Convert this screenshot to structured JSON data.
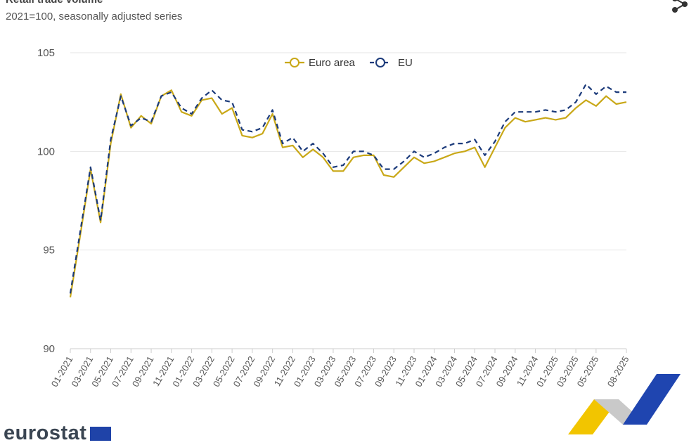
{
  "header": {
    "title": "Retail trade volume",
    "subtitle": "2021=100, seasonally adjusted series"
  },
  "footer": {
    "brand": "eurostat"
  },
  "icons": {
    "share": "share-icon",
    "flag": "eu-flag-icon"
  },
  "colors": {
    "euro_area": "#c9a818",
    "eu": "#1b3a7a",
    "grid": "#e6e6e6",
    "axis": "#cccccc"
  },
  "chart_data": {
    "type": "line",
    "title": "Retail trade volume",
    "subtitle": "2021=100, seasonally adjusted series",
    "xlabel": "",
    "ylabel": "",
    "ylim": [
      90,
      105
    ],
    "yticks": [
      90,
      95,
      100,
      105
    ],
    "grid": true,
    "legend_position": "top-center",
    "categories": [
      "01-2021",
      "02-2021",
      "03-2021",
      "04-2021",
      "05-2021",
      "06-2021",
      "07-2021",
      "08-2021",
      "09-2021",
      "10-2021",
      "11-2021",
      "12-2021",
      "01-2022",
      "02-2022",
      "03-2022",
      "04-2022",
      "05-2022",
      "06-2022",
      "07-2022",
      "08-2022",
      "09-2022",
      "10-2022",
      "11-2022",
      "12-2022",
      "01-2023",
      "02-2023",
      "03-2023",
      "04-2023",
      "05-2023",
      "06-2023",
      "07-2023",
      "08-2023",
      "09-2023",
      "10-2023",
      "11-2023",
      "12-2023",
      "01-2024",
      "02-2024",
      "03-2024",
      "04-2024",
      "05-2024",
      "06-2024",
      "07-2024",
      "08-2024",
      "09-2024",
      "10-2024",
      "11-2024",
      "12-2024",
      "01-2025",
      "02-2025",
      "03-2025",
      "04-2025",
      "05-2025",
      "06-2025",
      "07-2025",
      "08-2025"
    ],
    "tick_labels": [
      "01-2021",
      "03-2021",
      "05-2021",
      "07-2021",
      "09-2021",
      "11-2021",
      "01-2022",
      "03-2022",
      "05-2022",
      "07-2022",
      "09-2022",
      "11-2022",
      "01-2023",
      "03-2023",
      "05-2023",
      "07-2023",
      "09-2023",
      "11-2023",
      "01-2024",
      "03-2024",
      "05-2024",
      "07-2024",
      "09-2024",
      "11-2024",
      "01-2025",
      "03-2025",
      "05-2025",
      "08-2025"
    ],
    "series": [
      {
        "name": "Euro area",
        "style": "solid",
        "values": [
          92.6,
          95.8,
          99.1,
          96.4,
          100.4,
          102.9,
          101.2,
          101.8,
          101.4,
          102.8,
          103.1,
          102.0,
          101.8,
          102.6,
          102.7,
          101.9,
          102.2,
          100.8,
          100.7,
          100.9,
          101.9,
          100.2,
          100.3,
          99.7,
          100.1,
          99.7,
          99.0,
          99.0,
          99.7,
          99.8,
          99.8,
          98.8,
          98.7,
          99.2,
          99.7,
          99.4,
          99.5,
          99.7,
          99.9,
          100.0,
          100.2,
          99.2,
          100.2,
          101.2,
          101.7,
          101.5,
          101.6,
          101.7,
          101.6,
          101.7,
          102.2,
          102.6,
          102.3,
          102.8,
          102.4,
          102.5
        ]
      },
      {
        "name": "EU",
        "style": "dashed",
        "values": [
          92.8,
          96.0,
          99.2,
          96.5,
          100.6,
          102.8,
          101.3,
          101.7,
          101.5,
          102.8,
          103.0,
          102.2,
          101.9,
          102.7,
          103.1,
          102.6,
          102.5,
          101.1,
          101.0,
          101.2,
          102.1,
          100.4,
          100.7,
          100.0,
          100.4,
          99.9,
          99.2,
          99.3,
          100.0,
          100.0,
          99.8,
          99.1,
          99.1,
          99.5,
          100.0,
          99.7,
          99.9,
          100.2,
          100.4,
          100.4,
          100.6,
          99.8,
          100.5,
          101.5,
          102.0,
          102.0,
          102.0,
          102.1,
          102.0,
          102.1,
          102.5,
          103.4,
          102.9,
          103.3,
          103.0,
          103.0
        ]
      }
    ]
  }
}
